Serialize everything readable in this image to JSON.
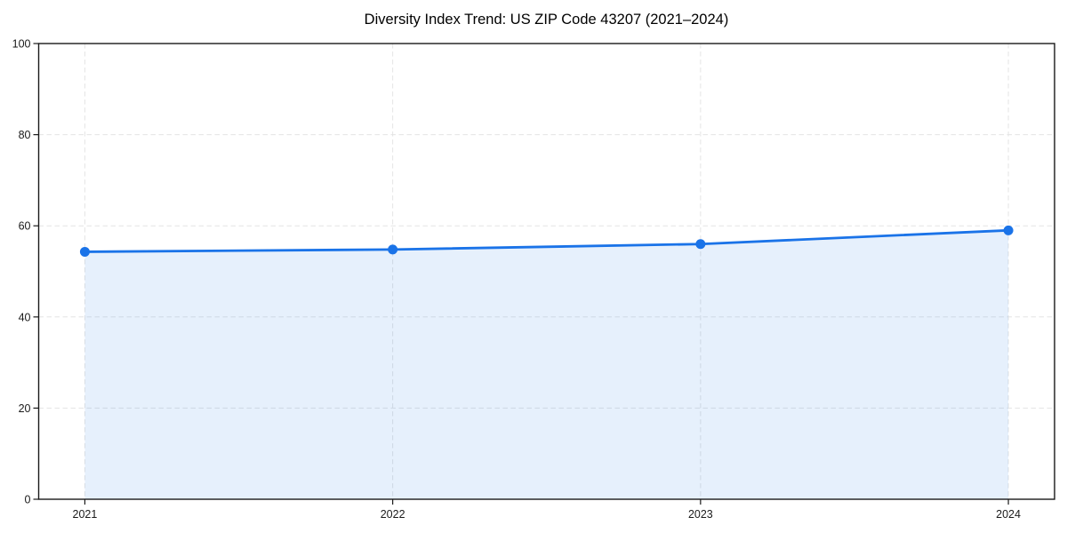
{
  "page": {
    "background": "#ffffff"
  },
  "chart_data": {
    "type": "line",
    "title": "Diversity Index Trend: US ZIP Code 43207 (2021–2024)",
    "categories": [
      "2021",
      "2022",
      "2023",
      "2024"
    ],
    "x": [
      2021,
      2022,
      2023,
      2024
    ],
    "series": [
      {
        "name": "Diversity Index",
        "values": [
          54.3,
          54.8,
          56.0,
          59.0
        ]
      }
    ],
    "xlim": [
      2020.85,
      2024.15
    ],
    "ylim": [
      0,
      100
    ],
    "yticks": [
      0,
      20,
      40,
      60,
      80,
      100
    ],
    "ytick_labels": [
      "0",
      "20",
      "40",
      "60",
      "80",
      "100"
    ],
    "grid": true,
    "grid_style": "dashed",
    "legend_position": "none",
    "marker": "circle",
    "area_fill": true,
    "colors": {
      "line": "#1a73e8",
      "marker": "#1a73e8",
      "area": "#1a73e8",
      "area_opacity": 0.11,
      "grid": "#e4e4e4",
      "spine": "#1a1a1a",
      "tick_label": "#1a1a1a",
      "title": "#000000"
    }
  }
}
